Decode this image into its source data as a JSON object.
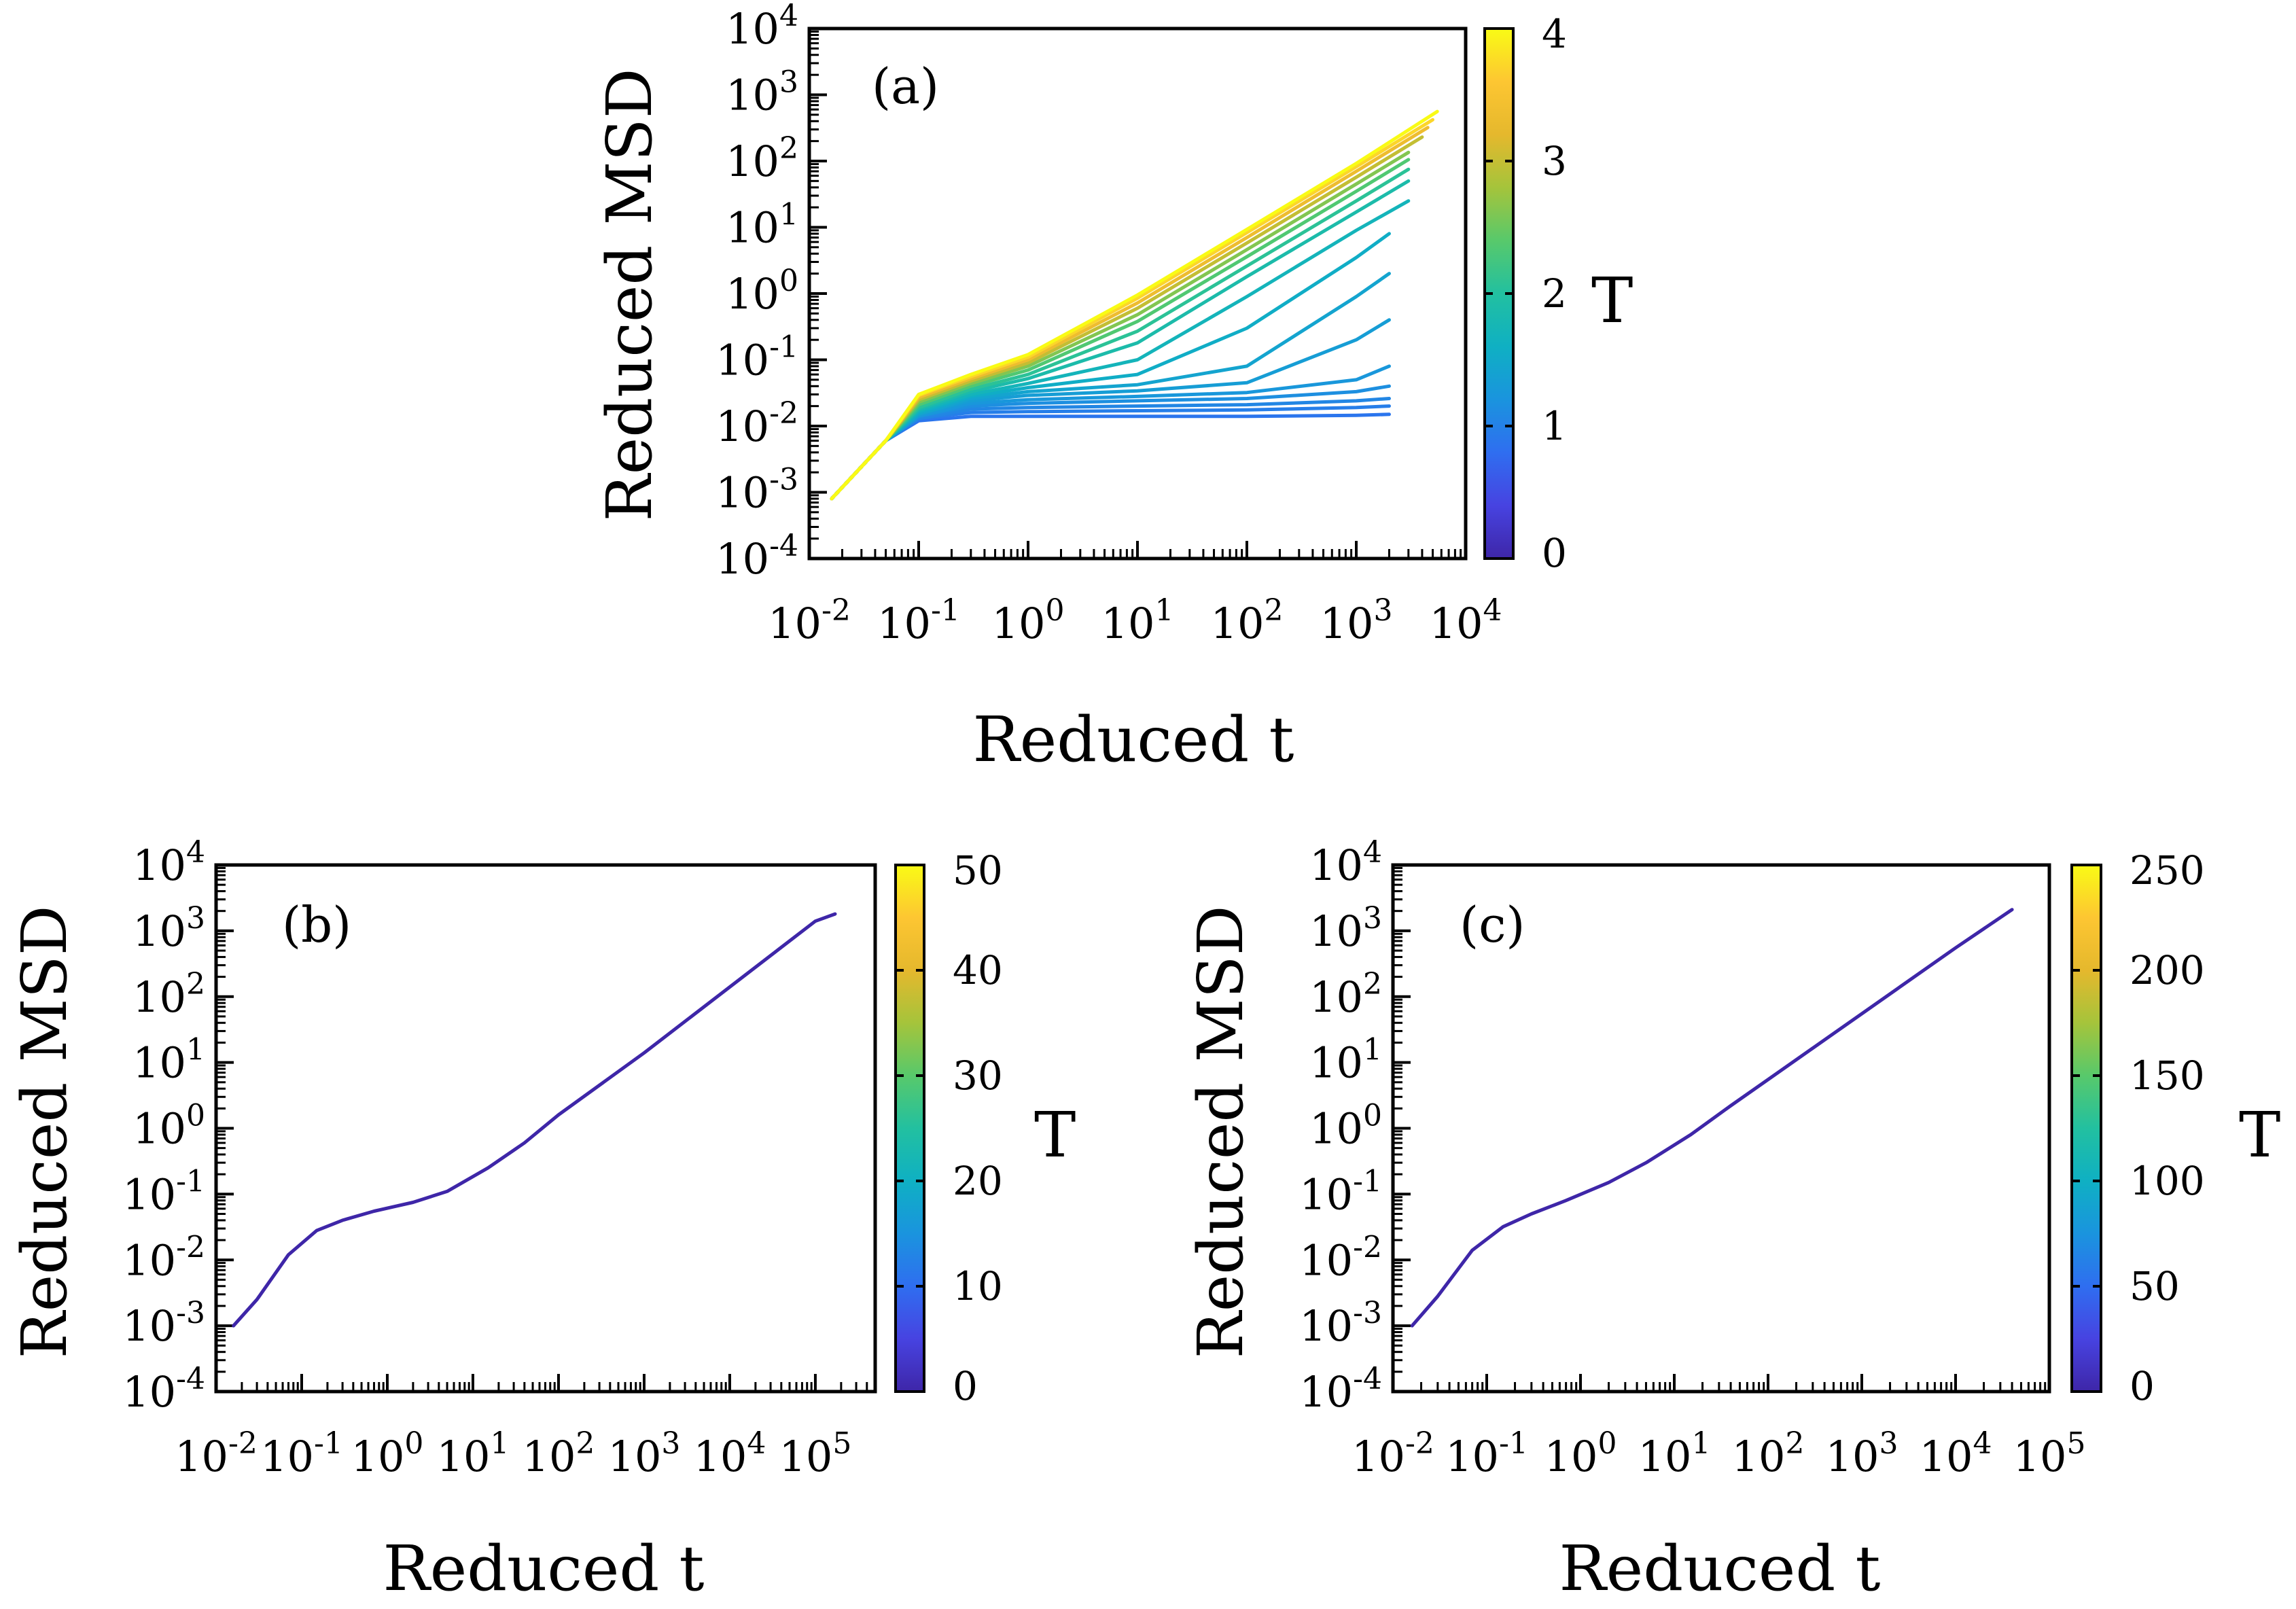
{
  "figure": {
    "colormap": [
      "#3e26a8",
      "#4743e1",
      "#2f6ef0",
      "#1a94de",
      "#0fb0c3",
      "#22c0a0",
      "#58c96b",
      "#a5c43b",
      "#e5b82d",
      "#fdc632",
      "#f9fb15"
    ]
  },
  "chart_data": [
    {
      "id": "a",
      "type": "line",
      "panel_label": "(a)",
      "xlabel": "Reduced t",
      "ylabel": "Reduced MSD",
      "xscale": "log",
      "yscale": "log",
      "xlim": [
        0.01,
        10000
      ],
      "ylim": [
        0.0001,
        10000
      ],
      "x_ticks": [
        {
          "base": "10",
          "exp": "-2"
        },
        {
          "base": "10",
          "exp": "-1"
        },
        {
          "base": "10",
          "exp": "0"
        },
        {
          "base": "10",
          "exp": "1"
        },
        {
          "base": "10",
          "exp": "2"
        },
        {
          "base": "10",
          "exp": "3"
        },
        {
          "base": "10",
          "exp": "4"
        }
      ],
      "y_ticks": [
        {
          "base": "10",
          "exp": "-4"
        },
        {
          "base": "10",
          "exp": "-3"
        },
        {
          "base": "10",
          "exp": "-2"
        },
        {
          "base": "10",
          "exp": "-1"
        },
        {
          "base": "10",
          "exp": "0"
        },
        {
          "base": "10",
          "exp": "1"
        },
        {
          "base": "10",
          "exp": "2"
        },
        {
          "base": "10",
          "exp": "3"
        },
        {
          "base": "10",
          "exp": "4"
        }
      ],
      "colorbar": {
        "label": "T",
        "min": 0,
        "max": 4,
        "ticks": [
          "0",
          "1",
          "2",
          "3",
          "4"
        ]
      },
      "series_note": "many curves, one per temperature T from ~0.55 to 4; plateau at ~0.015-0.1 for low T, diffusive (slope 1) for high T",
      "series": [
        {
          "T": 0.6,
          "t_end": 2000,
          "x": [
            0.016,
            0.05,
            0.1,
            0.3,
            1,
            10,
            100,
            1000,
            2000
          ],
          "y": [
            0.0008,
            0.006,
            0.012,
            0.014,
            0.014,
            0.014,
            0.014,
            0.0145,
            0.015
          ]
        },
        {
          "T": 0.7,
          "t_end": 2000,
          "x": [
            0.016,
            0.05,
            0.1,
            0.3,
            1,
            10,
            100,
            1000,
            2000
          ],
          "y": [
            0.0008,
            0.006,
            0.013,
            0.016,
            0.0165,
            0.017,
            0.0175,
            0.019,
            0.02
          ]
        },
        {
          "T": 0.8,
          "t_end": 2000,
          "x": [
            0.016,
            0.05,
            0.1,
            0.3,
            1,
            10,
            100,
            1000,
            2000
          ],
          "y": [
            0.0008,
            0.006,
            0.013,
            0.018,
            0.019,
            0.02,
            0.021,
            0.024,
            0.026
          ]
        },
        {
          "T": 0.9,
          "t_end": 2000,
          "x": [
            0.016,
            0.05,
            0.1,
            0.3,
            1,
            10,
            100,
            1000,
            2000
          ],
          "y": [
            0.0008,
            0.006,
            0.014,
            0.02,
            0.022,
            0.024,
            0.026,
            0.033,
            0.04
          ]
        },
        {
          "T": 1.0,
          "t_end": 2000,
          "x": [
            0.016,
            0.05,
            0.1,
            0.3,
            1,
            10,
            100,
            1000,
            2000
          ],
          "y": [
            0.0008,
            0.006,
            0.014,
            0.022,
            0.025,
            0.028,
            0.032,
            0.05,
            0.08
          ]
        },
        {
          "T": 1.1,
          "t_end": 2000,
          "x": [
            0.016,
            0.05,
            0.1,
            0.3,
            1,
            10,
            100,
            1000,
            2000
          ],
          "y": [
            0.0008,
            0.006,
            0.015,
            0.024,
            0.029,
            0.034,
            0.045,
            0.2,
            0.4
          ]
        },
        {
          "T": 1.2,
          "t_end": 2000,
          "x": [
            0.016,
            0.05,
            0.1,
            0.3,
            1,
            10,
            100,
            1000,
            2000
          ],
          "y": [
            0.0008,
            0.006,
            0.015,
            0.026,
            0.033,
            0.042,
            0.08,
            0.9,
            2.0
          ]
        },
        {
          "T": 1.35,
          "t_end": 2000,
          "x": [
            0.016,
            0.05,
            0.1,
            0.3,
            1,
            10,
            100,
            1000,
            2000
          ],
          "y": [
            0.0008,
            0.006,
            0.016,
            0.028,
            0.038,
            0.06,
            0.3,
            3.5,
            8.0
          ]
        },
        {
          "T": 1.5,
          "t_end": 3000,
          "x": [
            0.016,
            0.05,
            0.1,
            0.3,
            1,
            10,
            100,
            1000,
            3000
          ],
          "y": [
            0.0008,
            0.006,
            0.017,
            0.03,
            0.044,
            0.1,
            0.9,
            9.0,
            25
          ]
        },
        {
          "T": 1.7,
          "t_end": 3000,
          "x": [
            0.016,
            0.05,
            0.1,
            0.3,
            1,
            10,
            100,
            1000,
            3000
          ],
          "y": [
            0.0008,
            0.006,
            0.018,
            0.033,
            0.052,
            0.18,
            1.8,
            17,
            50
          ]
        },
        {
          "T": 1.9,
          "t_end": 3000,
          "x": [
            0.016,
            0.05,
            0.1,
            0.3,
            1,
            10,
            100,
            1000,
            3000
          ],
          "y": [
            0.0008,
            0.006,
            0.019,
            0.036,
            0.06,
            0.27,
            2.6,
            25,
            75
          ]
        },
        {
          "T": 2.2,
          "t_end": 3000,
          "x": [
            0.016,
            0.05,
            0.1,
            0.3,
            1,
            10,
            100,
            1000,
            3000
          ],
          "y": [
            0.0008,
            0.006,
            0.021,
            0.04,
            0.07,
            0.38,
            3.6,
            35,
            105
          ]
        },
        {
          "T": 2.5,
          "t_end": 3000,
          "x": [
            0.016,
            0.05,
            0.1,
            0.3,
            1,
            10,
            100,
            1000,
            3000
          ],
          "y": [
            0.0008,
            0.006,
            0.023,
            0.044,
            0.08,
            0.48,
            4.6,
            45,
            135
          ]
        },
        {
          "T": 2.9,
          "t_end": 4000,
          "x": [
            0.016,
            0.05,
            0.1,
            0.3,
            1,
            10,
            100,
            1000,
            4000
          ],
          "y": [
            0.0008,
            0.006,
            0.025,
            0.048,
            0.09,
            0.6,
            5.8,
            57,
            230
          ]
        },
        {
          "T": 3.3,
          "t_end": 4500,
          "x": [
            0.016,
            0.05,
            0.1,
            0.3,
            1,
            10,
            100,
            1000,
            4500
          ],
          "y": [
            0.0008,
            0.006,
            0.027,
            0.052,
            0.1,
            0.72,
            7.0,
            70,
            320
          ]
        },
        {
          "T": 3.7,
          "t_end": 5000,
          "x": [
            0.016,
            0.05,
            0.1,
            0.3,
            1,
            10,
            100,
            1000,
            5000
          ],
          "y": [
            0.0008,
            0.006,
            0.029,
            0.056,
            0.11,
            0.85,
            8.3,
            82,
            420
          ]
        },
        {
          "T": 4.0,
          "t_end": 5500,
          "x": [
            0.016,
            0.05,
            0.1,
            0.3,
            1,
            10,
            100,
            1000,
            5500
          ],
          "y": [
            0.0008,
            0.006,
            0.03,
            0.06,
            0.12,
            0.95,
            9.3,
            92,
            560
          ]
        }
      ]
    },
    {
      "id": "b",
      "type": "line",
      "panel_label": "(b)",
      "xlabel": "Reduced t",
      "ylabel": "Reduced MSD",
      "xscale": "log",
      "yscale": "log",
      "xlim": [
        0.01,
        500000
      ],
      "ylim": [
        0.0001,
        10000
      ],
      "x_ticks": [
        {
          "base": "10",
          "exp": "-2"
        },
        {
          "base": "10",
          "exp": "-1"
        },
        {
          "base": "10",
          "exp": "0"
        },
        {
          "base": "10",
          "exp": "1"
        },
        {
          "base": "10",
          "exp": "2"
        },
        {
          "base": "10",
          "exp": "3"
        },
        {
          "base": "10",
          "exp": "4"
        },
        {
          "base": "10",
          "exp": "5"
        }
      ],
      "y_ticks": [
        {
          "base": "10",
          "exp": "-4"
        },
        {
          "base": "10",
          "exp": "-3"
        },
        {
          "base": "10",
          "exp": "-2"
        },
        {
          "base": "10",
          "exp": "-1"
        },
        {
          "base": "10",
          "exp": "0"
        },
        {
          "base": "10",
          "exp": "1"
        },
        {
          "base": "10",
          "exp": "2"
        },
        {
          "base": "10",
          "exp": "3"
        },
        {
          "base": "10",
          "exp": "4"
        }
      ],
      "colorbar": {
        "label": "T",
        "min": 0,
        "max": 50,
        "ticks": [
          "0",
          "10",
          "20",
          "30",
          "40",
          "50"
        ]
      },
      "series": [
        {
          "name": "MSD",
          "x": [
            0.016,
            0.03,
            0.07,
            0.15,
            0.3,
            0.7,
            2,
            5,
            15,
            40,
            100,
            1000,
            10000,
            100000,
            170000
          ],
          "y": [
            0.001,
            0.0025,
            0.012,
            0.028,
            0.04,
            0.055,
            0.075,
            0.11,
            0.25,
            0.6,
            1.6,
            14,
            140,
            1400,
            1800
          ]
        }
      ]
    },
    {
      "id": "c",
      "type": "line",
      "panel_label": "(c)",
      "xlabel": "Reduced t",
      "ylabel": "Reduced MSD",
      "xscale": "log",
      "yscale": "log",
      "xlim": [
        0.01,
        100000
      ],
      "ylim": [
        0.0001,
        10000
      ],
      "x_ticks": [
        {
          "base": "10",
          "exp": "-2"
        },
        {
          "base": "10",
          "exp": "-1"
        },
        {
          "base": "10",
          "exp": "0"
        },
        {
          "base": "10",
          "exp": "1"
        },
        {
          "base": "10",
          "exp": "2"
        },
        {
          "base": "10",
          "exp": "3"
        },
        {
          "base": "10",
          "exp": "4"
        },
        {
          "base": "10",
          "exp": "5"
        }
      ],
      "y_ticks": [
        {
          "base": "10",
          "exp": "-4"
        },
        {
          "base": "10",
          "exp": "-3"
        },
        {
          "base": "10",
          "exp": "-2"
        },
        {
          "base": "10",
          "exp": "-1"
        },
        {
          "base": "10",
          "exp": "0"
        },
        {
          "base": "10",
          "exp": "1"
        },
        {
          "base": "10",
          "exp": "2"
        },
        {
          "base": "10",
          "exp": "3"
        },
        {
          "base": "10",
          "exp": "4"
        }
      ],
      "colorbar": {
        "label": "T",
        "min": 0,
        "max": 250,
        "ticks": [
          "0",
          "50",
          "100",
          "150",
          "200",
          "250"
        ]
      },
      "series": [
        {
          "name": "MSD",
          "x": [
            0.016,
            0.03,
            0.07,
            0.15,
            0.3,
            0.7,
            2,
            5,
            15,
            40,
            100,
            1000,
            10000,
            40000
          ],
          "y": [
            0.001,
            0.0028,
            0.014,
            0.032,
            0.05,
            0.08,
            0.15,
            0.3,
            0.8,
            2.2,
            5.5,
            55,
            550,
            2100
          ]
        }
      ]
    }
  ]
}
